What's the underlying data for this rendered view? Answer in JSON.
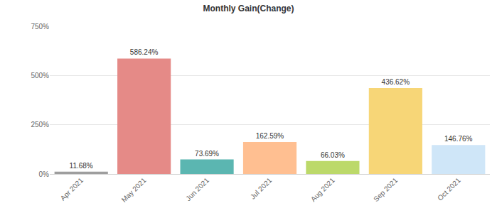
{
  "chart_data": {
    "type": "bar",
    "title": "Monthly Gain(Change)",
    "categories": [
      "Apr 2021",
      "May 2021",
      "Jun 2021",
      "Jul 2021",
      "Aug 2021",
      "Sep 2021",
      "Oct 2021"
    ],
    "values": [
      11.68,
      586.24,
      73.69,
      162.59,
      66.03,
      436.62,
      146.76
    ],
    "value_labels": [
      "11.68%",
      "586.24%",
      "73.69%",
      "162.59%",
      "66.03%",
      "436.62%",
      "146.76%"
    ],
    "colors": [
      "#9e9e9e",
      "#e58a87",
      "#5bb6b1",
      "#ffbf91",
      "#bcd96a",
      "#f7d677",
      "#cfe6f8"
    ],
    "data_labels": true,
    "ylim": [
      0,
      750
    ],
    "yticks": [
      {
        "value": 0,
        "label": "0%"
      },
      {
        "value": 250,
        "label": "250%"
      },
      {
        "value": 500,
        "label": "500%"
      },
      {
        "value": 750,
        "label": "750%"
      }
    ],
    "grid": true
  }
}
